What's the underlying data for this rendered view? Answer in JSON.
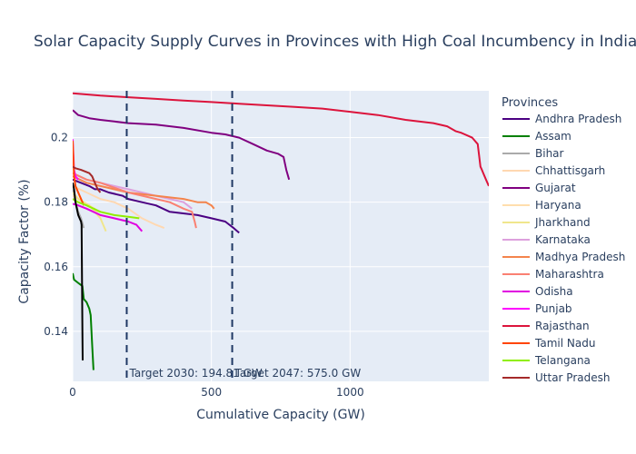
{
  "chart_data": {
    "type": "line",
    "title": "Solar Capacity Supply Curves in Provinces with High Coal Incumbency in India",
    "xlabel": "Cumulative Capacity (GW)",
    "ylabel": "Capacity Factor (%)",
    "xlim": [
      0,
      1500
    ],
    "ylim": [
      0.1245,
      0.2145
    ],
    "xticks": [
      0,
      500,
      1000
    ],
    "yticks": [
      0.14,
      0.16,
      0.18,
      0.2
    ],
    "xtick_labels": [
      "0",
      "500",
      "1000"
    ],
    "ytick_labels": [
      "0.14",
      "0.16",
      "0.18",
      "0.2"
    ],
    "grid": true,
    "legend_title": "Provinces",
    "legend_position": "right",
    "vlines": [
      {
        "x": 194.81,
        "label": "Target 2030: 194.81 GW",
        "color": "#1f3864"
      },
      {
        "x": 575.0,
        "label": "Target 2047: 575.0 GW",
        "color": "#1f3864"
      }
    ],
    "series": [
      {
        "name": "Andhra Pradesh",
        "color": "#4b0082",
        "x": [
          0,
          60,
          80,
          100,
          130,
          180,
          200,
          250,
          300,
          350,
          450,
          500,
          550,
          580,
          600
        ],
        "y": [
          0.187,
          0.185,
          0.184,
          0.184,
          0.183,
          0.182,
          0.181,
          0.18,
          0.179,
          0.177,
          0.176,
          0.175,
          0.174,
          0.172,
          0.1705
        ]
      },
      {
        "name": "Assam",
        "color": "#008000",
        "x": [
          0,
          5,
          20,
          35,
          40,
          50,
          60,
          65,
          70,
          75
        ],
        "y": [
          0.158,
          0.156,
          0.155,
          0.154,
          0.15,
          0.149,
          0.147,
          0.145,
          0.136,
          0.128
        ]
      },
      {
        "name": "Bihar",
        "color": "#aaaaaa",
        "x": [
          0,
          10,
          20,
          30,
          40
        ],
        "y": [
          0.184,
          0.18,
          0.177,
          0.175,
          0.172
        ]
      },
      {
        "name": "Chhattisgarh",
        "color": "#ffd8b1",
        "x": [
          0,
          50,
          100,
          150,
          200,
          250,
          300,
          330
        ],
        "y": [
          0.185,
          0.183,
          0.181,
          0.18,
          0.178,
          0.175,
          0.173,
          0.172
        ]
      },
      {
        "name": "Gujarat",
        "color": "#800080",
        "x": [
          0,
          20,
          60,
          100,
          150,
          200,
          300,
          400,
          500,
          550,
          600,
          650,
          700,
          740,
          760,
          770,
          780
        ],
        "y": [
          0.2085,
          0.207,
          0.206,
          0.2055,
          0.205,
          0.2045,
          0.204,
          0.203,
          0.2015,
          0.201,
          0.2,
          0.198,
          0.196,
          0.195,
          0.194,
          0.19,
          0.187
        ]
      },
      {
        "name": "Haryana",
        "color": "#ffdead",
        "x": [
          0,
          20,
          40,
          60,
          80,
          100
        ],
        "y": [
          0.182,
          0.181,
          0.18,
          0.179,
          0.178,
          0.175
        ]
      },
      {
        "name": "Jharkhand",
        "color": "#f0e68c",
        "x": [
          0,
          20,
          40,
          60,
          80,
          100,
          110,
          120
        ],
        "y": [
          0.183,
          0.181,
          0.18,
          0.179,
          0.177,
          0.175,
          0.173,
          0.171
        ]
      },
      {
        "name": "Karnataka",
        "color": "#dda0dd",
        "x": [
          0,
          50,
          100,
          150,
          200,
          250,
          300,
          350,
          400,
          430
        ],
        "y": [
          0.189,
          0.187,
          0.186,
          0.185,
          0.184,
          0.183,
          0.182,
          0.181,
          0.18,
          0.178
        ]
      },
      {
        "name": "Madhya Pradesh",
        "color": "#f4844c",
        "x": [
          0,
          50,
          100,
          200,
          300,
          400,
          450,
          480,
          500,
          510
        ],
        "y": [
          0.188,
          0.186,
          0.185,
          0.183,
          0.182,
          0.181,
          0.18,
          0.18,
          0.179,
          0.178
        ]
      },
      {
        "name": "Maharashtra",
        "color": "#fa8072",
        "x": [
          0,
          50,
          100,
          200,
          300,
          350,
          400,
          430,
          440,
          445
        ],
        "y": [
          0.189,
          0.187,
          0.186,
          0.183,
          0.181,
          0.18,
          0.178,
          0.177,
          0.174,
          0.172
        ]
      },
      {
        "name": "Odisha",
        "color": "#e000e0",
        "x": [
          0,
          20,
          50,
          100,
          150,
          200,
          230,
          250
        ],
        "y": [
          0.1795,
          0.179,
          0.178,
          0.176,
          0.175,
          0.174,
          0.173,
          0.171
        ]
      },
      {
        "name": "Punjab",
        "color": "#ff00ff",
        "x": [
          0,
          5,
          10,
          20
        ],
        "y": [
          0.1995,
          0.19,
          0.188,
          0.187
        ]
      },
      {
        "name": "Rajasthan",
        "color": "#dc143c",
        "x": [
          0,
          100,
          200,
          300,
          400,
          500,
          600,
          700,
          800,
          900,
          1000,
          1100,
          1200,
          1300,
          1350,
          1380,
          1400,
          1440,
          1460,
          1470,
          1475,
          1480,
          1490,
          1500
        ],
        "y": [
          0.2137,
          0.213,
          0.2125,
          0.212,
          0.2115,
          0.211,
          0.2105,
          0.21,
          0.2095,
          0.209,
          0.208,
          0.207,
          0.2055,
          0.2045,
          0.2035,
          0.202,
          0.2015,
          0.2,
          0.198,
          0.191,
          0.19,
          0.189,
          0.187,
          0.185
        ]
      },
      {
        "name": "Tamil Nadu",
        "color": "#ff4500",
        "x": [
          0,
          5,
          10,
          20,
          30,
          40
        ],
        "y": [
          0.199,
          0.188,
          0.185,
          0.183,
          0.181,
          0.179
        ]
      },
      {
        "name": "Telangana",
        "color": "#90ee00",
        "x": [
          0,
          20,
          50,
          100,
          150,
          200,
          240
        ],
        "y": [
          0.181,
          0.18,
          0.179,
          0.177,
          0.176,
          0.1755,
          0.175
        ]
      },
      {
        "name": "Uttar Pradesh",
        "color": "#a52a2a",
        "x": [
          0,
          10,
          30,
          60,
          70,
          80,
          90,
          100
        ],
        "y": [
          0.191,
          0.1905,
          0.19,
          0.189,
          0.188,
          0.186,
          0.184,
          0.183
        ]
      },
      {
        "name": "",
        "color": "#000000",
        "x": [
          0,
          5,
          10,
          15,
          20,
          25,
          30,
          32,
          35,
          36
        ],
        "y": [
          0.186,
          0.184,
          0.18,
          0.178,
          0.176,
          0.175,
          0.174,
          0.173,
          0.14,
          0.131
        ]
      }
    ]
  }
}
